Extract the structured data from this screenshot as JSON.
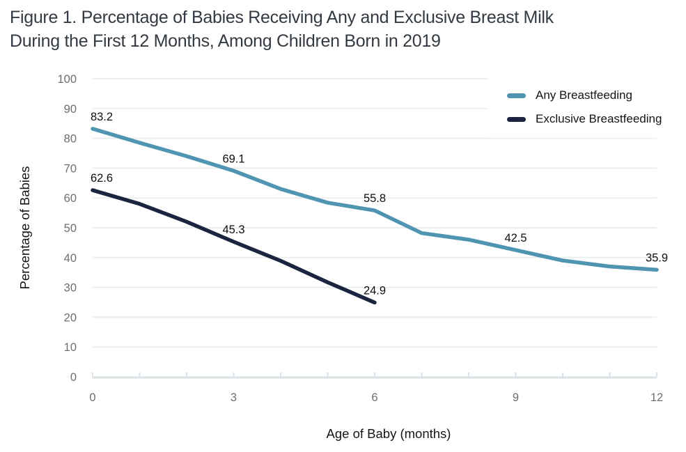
{
  "figure": {
    "title_lines": [
      "Figure 1. Percentage of Babies Receiving Any and Exclusive Breast Milk",
      "During the First 12 Months, Among Children Born in 2019"
    ]
  },
  "chart_data": {
    "type": "line",
    "title": "Figure 1. Percentage of Babies Receiving Any and Exclusive Breast Milk During the First 12 Months, Among Children Born in 2019",
    "xlabel": "Age of Baby (months)",
    "ylabel": "Percentage of Babies",
    "xlim": [
      0,
      12
    ],
    "ylim": [
      0,
      100
    ],
    "x_ticks": [
      0,
      3,
      6,
      9,
      12
    ],
    "y_ticks": [
      0,
      10,
      20,
      30,
      40,
      50,
      60,
      70,
      80,
      90,
      100
    ],
    "grid": true,
    "legend_position": "top-right",
    "x": [
      0,
      1,
      2,
      3,
      4,
      5,
      6,
      7,
      8,
      9,
      10,
      11,
      12
    ],
    "series": [
      {
        "name": "Any Breastfeeding",
        "color": "#4f94b1",
        "values": [
          83.2,
          78.5,
          74.0,
          69.1,
          63.0,
          58.4,
          55.8,
          48.2,
          46.0,
          42.5,
          39.0,
          37.0,
          35.9
        ],
        "labeled_points": [
          {
            "month": 0,
            "value": 83.2
          },
          {
            "month": 3,
            "value": 69.1
          },
          {
            "month": 6,
            "value": 55.8
          },
          {
            "month": 9,
            "value": 42.5
          },
          {
            "month": 12,
            "value": 35.9
          }
        ]
      },
      {
        "name": "Exclusive Breastfeeding",
        "color": "#1b2540",
        "values": [
          62.6,
          58.0,
          52.0,
          45.3,
          38.9,
          31.7,
          24.9
        ],
        "labeled_points": [
          {
            "month": 0,
            "value": 62.6
          },
          {
            "month": 3,
            "value": 45.3
          },
          {
            "month": 6,
            "value": 24.9
          }
        ]
      }
    ]
  },
  "colors": {
    "grid": "#e9eeef",
    "axis": "#dbe2e6",
    "tick_text": "#6d6d6d",
    "data_label_text": "#0e0e0e",
    "title_text": "#333a42"
  }
}
